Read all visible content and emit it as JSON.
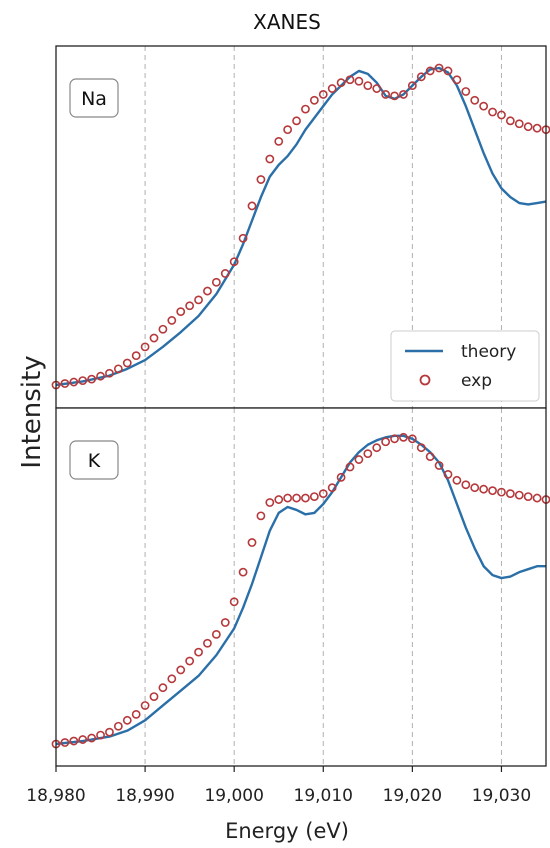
{
  "chart_data": {
    "type": "line",
    "title": "XANES",
    "xlabel": "Energy (eV)",
    "ylabel": "Intensity",
    "xlim": [
      18980,
      19035
    ],
    "x_ticks": [
      18980,
      18990,
      19000,
      19010,
      19020,
      19030
    ],
    "x_tick_labels": [
      "18,980",
      "18,990",
      "19,000",
      "19,010",
      "19,020",
      "19,030"
    ],
    "grid": "vertical dashed",
    "legend": {
      "placement": "lower-right of top panel",
      "entries": [
        "theory",
        "exp"
      ]
    },
    "colors": {
      "theory": "#2a6fa8",
      "exp": "#b5383b"
    },
    "panels": [
      {
        "label": "Na",
        "ylim": [
          0,
          1.1
        ],
        "series": [
          {
            "name": "theory",
            "style": "line",
            "x": [
              18980,
              18983,
              18986,
              18988,
              18990,
              18992,
              18994,
              18996,
              18998,
              19000,
              19001,
              19002,
              19003,
              19004,
              19005,
              19006,
              19007,
              19008,
              19009,
              19010,
              19011,
              19012,
              19013,
              19014,
              19015,
              19016,
              19017,
              19018,
              19019,
              19020,
              19021,
              19022,
              19023,
              19024,
              19025,
              19026,
              19027,
              19028,
              19029,
              19030,
              19031,
              19032,
              19033,
              19034,
              19035
            ],
            "y": [
              0.0,
              0.012,
              0.032,
              0.055,
              0.085,
              0.13,
              0.18,
              0.235,
              0.31,
              0.41,
              0.48,
              0.56,
              0.64,
              0.71,
              0.75,
              0.78,
              0.82,
              0.87,
              0.91,
              0.95,
              0.99,
              1.02,
              1.05,
              1.07,
              1.06,
              1.03,
              0.985,
              0.975,
              0.99,
              1.02,
              1.05,
              1.075,
              1.08,
              1.065,
              1.02,
              0.95,
              0.87,
              0.79,
              0.72,
              0.67,
              0.64,
              0.62,
              0.615,
              0.62,
              0.625
            ]
          },
          {
            "name": "exp",
            "style": "markers",
            "x": [
              18980,
              18981,
              18982,
              18983,
              18984,
              18985,
              18986,
              18987,
              18988,
              18989,
              18990,
              18991,
              18992,
              18993,
              18994,
              18995,
              18996,
              18997,
              18998,
              18999,
              19000,
              19001,
              19002,
              19003,
              19004,
              19005,
              19006,
              19007,
              19008,
              19009,
              19010,
              19011,
              19012,
              19013,
              19014,
              19015,
              19016,
              19017,
              19018,
              19019,
              19020,
              19021,
              19022,
              19023,
              19024,
              19025,
              19026,
              19027,
              19028,
              19029,
              19030,
              19031,
              19032,
              19033,
              19034,
              19035
            ],
            "y": [
              0.0,
              0.005,
              0.01,
              0.015,
              0.02,
              0.03,
              0.04,
              0.055,
              0.075,
              0.1,
              0.13,
              0.16,
              0.19,
              0.22,
              0.25,
              0.27,
              0.29,
              0.32,
              0.35,
              0.38,
              0.42,
              0.5,
              0.61,
              0.7,
              0.77,
              0.83,
              0.87,
              0.9,
              0.94,
              0.97,
              0.99,
              1.01,
              1.03,
              1.04,
              1.035,
              1.02,
              1.01,
              0.99,
              0.985,
              0.99,
              1.02,
              1.05,
              1.07,
              1.08,
              1.07,
              1.04,
              1.0,
              0.97,
              0.95,
              0.93,
              0.92,
              0.9,
              0.89,
              0.88,
              0.875,
              0.87
            ]
          }
        ]
      },
      {
        "label": "K",
        "ylim": [
          0,
          1.1
        ],
        "series": [
          {
            "name": "theory",
            "style": "line",
            "x": [
              18980,
              18983,
              18986,
              18988,
              18990,
              18992,
              18994,
              18996,
              18998,
              19000,
              19001,
              19002,
              19003,
              19004,
              19005,
              19006,
              19007,
              19008,
              19009,
              19010,
              19011,
              19012,
              19013,
              19014,
              19015,
              19016,
              19017,
              19018,
              19019,
              19020,
              19021,
              19022,
              19023,
              19024,
              19025,
              19026,
              19027,
              19028,
              19029,
              19030,
              19031,
              19032,
              19033,
              19034,
              19035
            ],
            "y": [
              0.0,
              0.01,
              0.025,
              0.045,
              0.08,
              0.13,
              0.18,
              0.23,
              0.3,
              0.39,
              0.46,
              0.54,
              0.63,
              0.72,
              0.78,
              0.8,
              0.79,
              0.775,
              0.78,
              0.81,
              0.85,
              0.9,
              0.95,
              0.985,
              1.01,
              1.025,
              1.035,
              1.04,
              1.04,
              1.03,
              1.01,
              0.985,
              0.95,
              0.89,
              0.81,
              0.73,
              0.66,
              0.6,
              0.57,
              0.56,
              0.565,
              0.58,
              0.59,
              0.6,
              0.6
            ]
          },
          {
            "name": "exp",
            "style": "markers",
            "x": [
              18980,
              18981,
              18982,
              18983,
              18984,
              18985,
              18986,
              18987,
              18988,
              18989,
              18990,
              18991,
              18992,
              18993,
              18994,
              18995,
              18996,
              18997,
              18998,
              18999,
              19000,
              19001,
              19002,
              19003,
              19004,
              19005,
              19006,
              19007,
              19008,
              19009,
              19010,
              19011,
              19012,
              19013,
              19014,
              19015,
              19016,
              19017,
              19018,
              19019,
              19020,
              19021,
              19022,
              19023,
              19024,
              19025,
              19026,
              19027,
              19028,
              19029,
              19030,
              19031,
              19032,
              19033,
              19034,
              19035
            ],
            "y": [
              0.0,
              0.005,
              0.01,
              0.015,
              0.02,
              0.03,
              0.04,
              0.06,
              0.08,
              0.1,
              0.13,
              0.16,
              0.19,
              0.22,
              0.25,
              0.28,
              0.31,
              0.34,
              0.37,
              0.41,
              0.48,
              0.58,
              0.68,
              0.77,
              0.815,
              0.825,
              0.83,
              0.83,
              0.83,
              0.835,
              0.845,
              0.865,
              0.9,
              0.935,
              0.96,
              0.98,
              1.0,
              1.02,
              1.03,
              1.035,
              1.03,
              1.0,
              0.97,
              0.94,
              0.91,
              0.89,
              0.875,
              0.865,
              0.86,
              0.855,
              0.85,
              0.845,
              0.84,
              0.835,
              0.83,
              0.825
            ]
          }
        ]
      }
    ]
  }
}
